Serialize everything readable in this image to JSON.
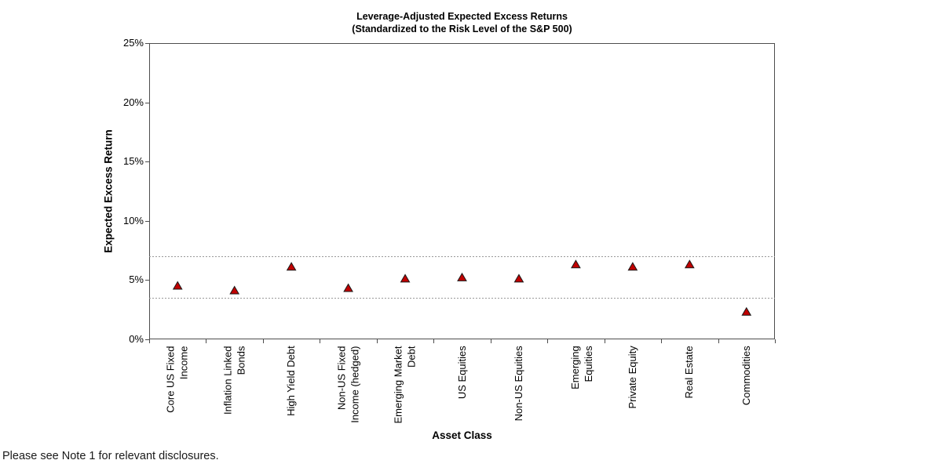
{
  "page": {
    "footnote": "Please see Note 1 for relevant disclosures."
  },
  "chart_data": {
    "type": "scatter",
    "title": "Leverage-Adjusted Expected Excess Returns",
    "subtitle": "(Standardized to the Risk Level of the S&P 500)",
    "xlabel": "Asset Class",
    "ylabel": "Expected Excess Return",
    "ylim": [
      0,
      25
    ],
    "y_ticks": [
      {
        "value": 0,
        "label": "0%"
      },
      {
        "value": 5,
        "label": "5%"
      },
      {
        "value": 10,
        "label": "10%"
      },
      {
        "value": 15,
        "label": "15%"
      },
      {
        "value": 20,
        "label": "20%"
      },
      {
        "value": 25,
        "label": "25%"
      }
    ],
    "categories": [
      "Core US Fixed\nIncome",
      "Inflation Linked\nBonds",
      "High Yield Debt",
      "Non-US Fixed\nIncome (hedged)",
      "Emerging Market\nDebt",
      "US Equities",
      "Non-US Equities",
      "Emerging Equities",
      "Private Equity",
      "Real Estate",
      "Commodities"
    ],
    "series": [
      {
        "name": "Leverage-Adjusted Expected Excess Return",
        "marker": "triangle",
        "values": [
          4.5,
          4.1,
          6.1,
          4.3,
          5.1,
          5.2,
          5.1,
          6.3,
          6.1,
          6.3,
          2.3
        ]
      }
    ],
    "reference_lines": [
      {
        "value": 7.0,
        "style": "dashed"
      },
      {
        "value": 3.5,
        "style": "dashed"
      }
    ],
    "legend": "none",
    "grid": "off",
    "colors": {
      "marker_fill": "#C00000",
      "marker_stroke": "#1A1A1A",
      "axis": "#4D4D4D",
      "reference_line": "#999999"
    }
  }
}
